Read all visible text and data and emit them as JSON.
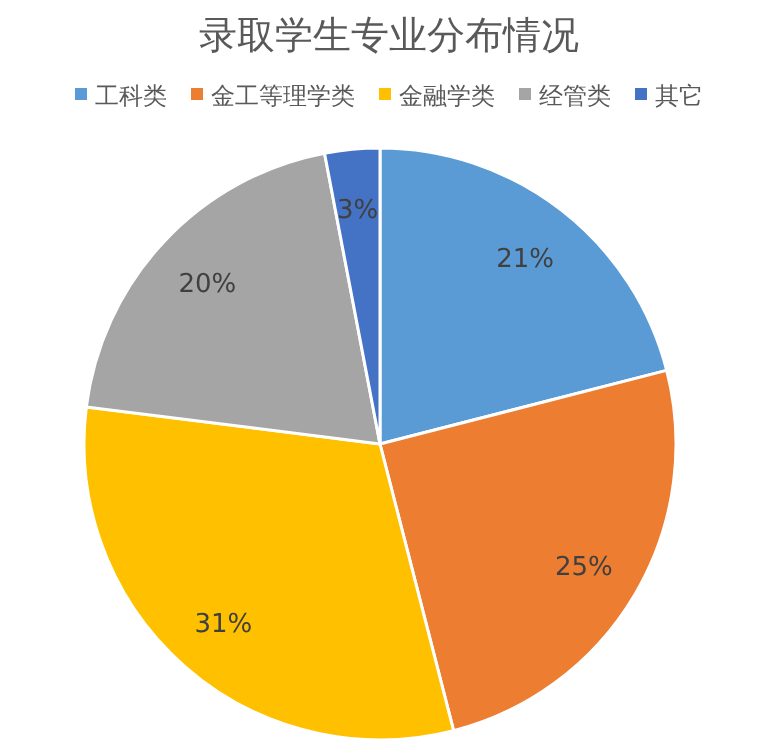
{
  "chart_data": {
    "type": "pie",
    "title": "录取学生专业分布情况",
    "categories": [
      "工科类",
      "金工等理学类",
      "金融学类",
      "经管类",
      "其它"
    ],
    "values": [
      21,
      25,
      31,
      20,
      3
    ],
    "value_labels": [
      "21%",
      "25%",
      "31%",
      "20%",
      "3%"
    ],
    "colors": [
      "#5b9bd5",
      "#ed7d31",
      "#ffc000",
      "#a5a5a5",
      "#4472c4"
    ],
    "legend": "top"
  }
}
